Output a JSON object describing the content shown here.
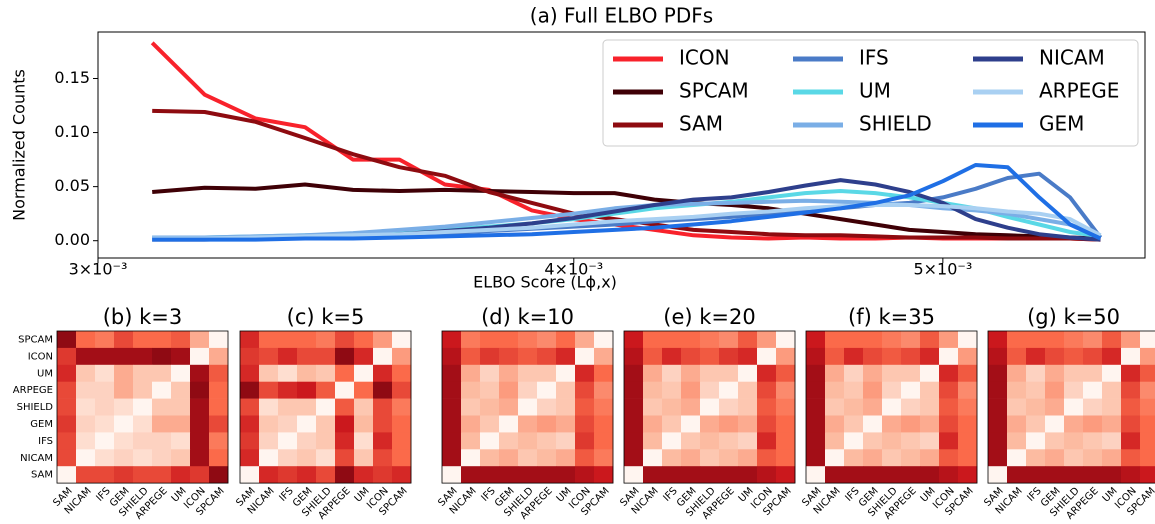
{
  "chart_data": [
    {
      "type": "line",
      "title": "(a) Full ELBO PDFs",
      "xlabel": "ELBO Score (Lϕ,x)",
      "ylabel": "Normalized Counts",
      "xscale": "log",
      "xlim": [
        0.003,
        0.00565
      ],
      "ylim": [
        -0.016,
        0.193
      ],
      "xticks": [
        {
          "value": 0.003,
          "label": "3×10⁻³"
        },
        {
          "value": 0.004,
          "label": "4×10⁻³"
        },
        {
          "value": 0.005,
          "label": "5×10⁻³"
        }
      ],
      "yticks": [
        {
          "value": 0,
          "label": "0.00"
        },
        {
          "value": 0.05,
          "label": "0.05"
        },
        {
          "value": 0.1,
          "label": "0.10"
        },
        {
          "value": 0.15,
          "label": "0.15"
        }
      ],
      "legend_position": "upper right",
      "legend_columns": 3,
      "x": [
        0.0031,
        0.0032,
        0.0033,
        0.0034,
        0.0035,
        0.0036,
        0.0037,
        0.0038,
        0.0039,
        0.004,
        0.0041,
        0.0042,
        0.0043,
        0.0044,
        0.0045,
        0.0046,
        0.0047,
        0.0048,
        0.0049,
        0.005,
        0.0051,
        0.0052,
        0.0053,
        0.0054,
        0.0055
      ],
      "series": [
        {
          "name": "ICON",
          "color": "#f8222b",
          "values": [
            0.183,
            0.135,
            0.113,
            0.105,
            0.075,
            0.075,
            0.052,
            0.047,
            0.028,
            0.02,
            0.015,
            0.01,
            0.005,
            0.003,
            0.002,
            0.003,
            0.002,
            0.002,
            0.003,
            0.002,
            0.002,
            0.002,
            0.002,
            0.002,
            0.001
          ]
        },
        {
          "name": "SPCAM",
          "color": "#3f0006",
          "values": [
            0.045,
            0.049,
            0.048,
            0.052,
            0.047,
            0.046,
            0.047,
            0.046,
            0.045,
            0.044,
            0.044,
            0.038,
            0.035,
            0.033,
            0.03,
            0.025,
            0.02,
            0.015,
            0.01,
            0.008,
            0.006,
            0.005,
            0.004,
            0.003,
            0.002
          ]
        },
        {
          "name": "SAM",
          "color": "#8e0b10",
          "values": [
            0.12,
            0.119,
            0.11,
            0.095,
            0.08,
            0.068,
            0.06,
            0.045,
            0.035,
            0.025,
            0.02,
            0.015,
            0.01,
            0.008,
            0.006,
            0.005,
            0.005,
            0.004,
            0.003,
            0.003,
            0.003,
            0.002,
            0.002,
            0.002,
            0.001
          ]
        },
        {
          "name": "IFS",
          "color": "#4a7bc7",
          "values": [
            0.002,
            0.002,
            0.003,
            0.003,
            0.004,
            0.005,
            0.007,
            0.009,
            0.011,
            0.013,
            0.015,
            0.018,
            0.02,
            0.022,
            0.025,
            0.028,
            0.03,
            0.033,
            0.035,
            0.04,
            0.048,
            0.058,
            0.062,
            0.04,
            0.003
          ]
        },
        {
          "name": "UM",
          "color": "#5ad8e6",
          "values": [
            0.003,
            0.003,
            0.004,
            0.005,
            0.006,
            0.008,
            0.01,
            0.013,
            0.016,
            0.02,
            0.025,
            0.03,
            0.033,
            0.036,
            0.04,
            0.044,
            0.046,
            0.044,
            0.04,
            0.035,
            0.03,
            0.022,
            0.015,
            0.008,
            0.004
          ]
        },
        {
          "name": "SHIELD",
          "color": "#7aaee6",
          "values": [
            0.003,
            0.003,
            0.004,
            0.005,
            0.007,
            0.01,
            0.013,
            0.017,
            0.021,
            0.025,
            0.03,
            0.033,
            0.034,
            0.035,
            0.036,
            0.037,
            0.036,
            0.035,
            0.033,
            0.03,
            0.028,
            0.025,
            0.02,
            0.015,
            0.005
          ]
        },
        {
          "name": "NICAM",
          "color": "#2e3f8c",
          "values": [
            0.001,
            0.001,
            0.002,
            0.003,
            0.004,
            0.006,
            0.009,
            0.012,
            0.016,
            0.021,
            0.027,
            0.033,
            0.038,
            0.04,
            0.045,
            0.051,
            0.056,
            0.052,
            0.045,
            0.035,
            0.02,
            0.012,
            0.006,
            0.003,
            0.001
          ]
        },
        {
          "name": "ARPEGE",
          "color": "#a9d0f2",
          "values": [
            0.002,
            0.002,
            0.003,
            0.004,
            0.005,
            0.006,
            0.008,
            0.01,
            0.012,
            0.015,
            0.018,
            0.02,
            0.022,
            0.025,
            0.027,
            0.03,
            0.032,
            0.033,
            0.033,
            0.032,
            0.03,
            0.027,
            0.025,
            0.02,
            0.005
          ]
        },
        {
          "name": "GEM",
          "color": "#1f6fe5",
          "values": [
            0.001,
            0.001,
            0.001,
            0.002,
            0.002,
            0.003,
            0.004,
            0.005,
            0.006,
            0.008,
            0.01,
            0.012,
            0.015,
            0.018,
            0.022,
            0.026,
            0.03,
            0.035,
            0.042,
            0.055,
            0.07,
            0.068,
            0.04,
            0.015,
            0.002
          ]
        }
      ]
    },
    {
      "type": "heatmap",
      "title": "(b) k=3",
      "colormap": "Reds",
      "zlim": [
        0,
        1
      ],
      "x_categories": [
        "SAM",
        "NICAM",
        "IFS",
        "GEM",
        "SHIELD",
        "ARPEGE",
        "UM",
        "ICON",
        "SPCAM"
      ],
      "y_categories": [
        "SPCAM",
        "ICON",
        "UM",
        "ARPEGE",
        "SHIELD",
        "GEM",
        "IFS",
        "NICAM",
        "SAM"
      ],
      "values": [
        [
          0.9,
          0.5,
          0.45,
          0.6,
          0.5,
          0.5,
          0.55,
          0.3,
          0
        ],
        [
          0.65,
          0.85,
          0.85,
          0.85,
          0.85,
          0.9,
          0.85,
          0,
          0.3
        ],
        [
          0.7,
          0.2,
          0.1,
          0.3,
          0.2,
          0.2,
          0,
          0.85,
          0.55
        ],
        [
          0.6,
          0.15,
          0.15,
          0.3,
          0.2,
          0,
          0.2,
          0.9,
          0.5
        ],
        [
          0.6,
          0.1,
          0.15,
          0.1,
          0,
          0.2,
          0.2,
          0.85,
          0.5
        ],
        [
          0.65,
          0.15,
          0.1,
          0,
          0.1,
          0.3,
          0.3,
          0.85,
          0.6
        ],
        [
          0.6,
          0.1,
          0,
          0.1,
          0.15,
          0.15,
          0.1,
          0.85,
          0.45
        ],
        [
          0.6,
          0,
          0.1,
          0.15,
          0.1,
          0.15,
          0.2,
          0.85,
          0.5
        ],
        [
          0,
          0.6,
          0.6,
          0.65,
          0.6,
          0.6,
          0.7,
          0.65,
          0.9
        ]
      ]
    },
    {
      "type": "heatmap",
      "title": "(c) k=5",
      "colormap": "Reds",
      "zlim": [
        0,
        1
      ],
      "x_categories": [
        "SAM",
        "NICAM",
        "IFS",
        "GEM",
        "SHIELD",
        "ARPEGE",
        "UM",
        "ICON",
        "SPCAM"
      ],
      "values": [
        [
          0.7,
          0.5,
          0.5,
          0.5,
          0.45,
          0.6,
          0.5,
          0.35,
          0
        ],
        [
          0.65,
          0.6,
          0.7,
          0.6,
          0.6,
          0.9,
          0.7,
          0,
          0.35
        ],
        [
          0.7,
          0.2,
          0.1,
          0.25,
          0.2,
          0.5,
          0,
          0.7,
          0.5
        ],
        [
          0.9,
          0.6,
          0.7,
          0.75,
          0.55,
          0,
          0.5,
          0.9,
          0.6
        ],
        [
          0.6,
          0.1,
          0.2,
          0.2,
          0,
          0.55,
          0.2,
          0.6,
          0.45
        ],
        [
          0.7,
          0.2,
          0.15,
          0,
          0.2,
          0.75,
          0.25,
          0.6,
          0.5
        ],
        [
          0.65,
          0.15,
          0,
          0.15,
          0.2,
          0.7,
          0.1,
          0.7,
          0.5
        ],
        [
          0.7,
          0,
          0.15,
          0.2,
          0.1,
          0.6,
          0.2,
          0.6,
          0.5
        ],
        [
          0,
          0.7,
          0.65,
          0.7,
          0.6,
          0.9,
          0.7,
          0.65,
          0.7
        ]
      ]
    },
    {
      "type": "heatmap",
      "title": "(d) k=10",
      "colormap": "Reds",
      "zlim": [
        0,
        1
      ],
      "x_categories": [
        "SAM",
        "NICAM",
        "IFS",
        "GEM",
        "SHIELD",
        "ARPEGE",
        "UM",
        "ICON",
        "SPCAM"
      ],
      "values": [
        [
          0.75,
          0.45,
          0.5,
          0.5,
          0.45,
          0.4,
          0.5,
          0.3,
          0
        ],
        [
          0.8,
          0.55,
          0.65,
          0.6,
          0.55,
          0.6,
          0.7,
          0,
          0.3
        ],
        [
          0.85,
          0.3,
          0.15,
          0.3,
          0.2,
          0.2,
          0,
          0.7,
          0.5
        ],
        [
          0.85,
          0.25,
          0.2,
          0.35,
          0.15,
          0,
          0.2,
          0.6,
          0.4
        ],
        [
          0.85,
          0.2,
          0.25,
          0.3,
          0,
          0.15,
          0.2,
          0.55,
          0.45
        ],
        [
          0.85,
          0.3,
          0.2,
          0,
          0.3,
          0.35,
          0.3,
          0.6,
          0.5
        ],
        [
          0.85,
          0.25,
          0,
          0.2,
          0.25,
          0.2,
          0.15,
          0.65,
          0.5
        ],
        [
          0.85,
          0,
          0.25,
          0.3,
          0.2,
          0.25,
          0.3,
          0.55,
          0.45
        ],
        [
          0,
          0.85,
          0.85,
          0.85,
          0.85,
          0.85,
          0.85,
          0.8,
          0.75
        ]
      ]
    },
    {
      "type": "heatmap",
      "title": "(e) k=20",
      "colormap": "Reds",
      "zlim": [
        0,
        1
      ],
      "x_categories": [
        "SAM",
        "NICAM",
        "IFS",
        "GEM",
        "SHIELD",
        "ARPEGE",
        "UM",
        "ICON",
        "SPCAM"
      ],
      "values": [
        [
          0.75,
          0.5,
          0.5,
          0.5,
          0.45,
          0.4,
          0.55,
          0.35,
          0
        ],
        [
          0.8,
          0.55,
          0.7,
          0.6,
          0.55,
          0.65,
          0.7,
          0,
          0.35
        ],
        [
          0.85,
          0.3,
          0.15,
          0.3,
          0.2,
          0.2,
          0,
          0.7,
          0.55
        ],
        [
          0.85,
          0.25,
          0.2,
          0.35,
          0.15,
          0,
          0.2,
          0.6,
          0.4
        ],
        [
          0.85,
          0.2,
          0.25,
          0.3,
          0,
          0.15,
          0.2,
          0.55,
          0.45
        ],
        [
          0.85,
          0.3,
          0.2,
          0,
          0.3,
          0.35,
          0.3,
          0.6,
          0.5
        ],
        [
          0.85,
          0.25,
          0,
          0.2,
          0.25,
          0.2,
          0.15,
          0.7,
          0.5
        ],
        [
          0.85,
          0,
          0.25,
          0.3,
          0.2,
          0.25,
          0.3,
          0.55,
          0.5
        ],
        [
          0,
          0.85,
          0.85,
          0.85,
          0.85,
          0.85,
          0.85,
          0.8,
          0.75
        ]
      ]
    },
    {
      "type": "heatmap",
      "title": "(f) k=35",
      "colormap": "Reds",
      "zlim": [
        0,
        1
      ],
      "x_categories": [
        "SAM",
        "NICAM",
        "IFS",
        "GEM",
        "SHIELD",
        "ARPEGE",
        "UM",
        "ICON",
        "SPCAM"
      ],
      "values": [
        [
          0.75,
          0.5,
          0.5,
          0.5,
          0.45,
          0.4,
          0.55,
          0.35,
          0
        ],
        [
          0.8,
          0.55,
          0.7,
          0.6,
          0.55,
          0.6,
          0.7,
          0,
          0.35
        ],
        [
          0.85,
          0.3,
          0.15,
          0.3,
          0.2,
          0.2,
          0,
          0.7,
          0.55
        ],
        [
          0.85,
          0.25,
          0.2,
          0.35,
          0.15,
          0,
          0.2,
          0.6,
          0.4
        ],
        [
          0.85,
          0.2,
          0.25,
          0.3,
          0,
          0.15,
          0.2,
          0.55,
          0.45
        ],
        [
          0.85,
          0.3,
          0.2,
          0,
          0.3,
          0.35,
          0.3,
          0.6,
          0.5
        ],
        [
          0.85,
          0.25,
          0,
          0.2,
          0.25,
          0.2,
          0.15,
          0.7,
          0.5
        ],
        [
          0.85,
          0,
          0.25,
          0.3,
          0.2,
          0.25,
          0.3,
          0.55,
          0.5
        ],
        [
          0,
          0.85,
          0.85,
          0.85,
          0.85,
          0.85,
          0.85,
          0.8,
          0.75
        ]
      ]
    },
    {
      "type": "heatmap",
      "title": "(g) k=50",
      "colormap": "Reds",
      "zlim": [
        0,
        1
      ],
      "x_categories": [
        "SAM",
        "NICAM",
        "IFS",
        "GEM",
        "SHIELD",
        "ARPEGE",
        "UM",
        "ICON",
        "SPCAM"
      ],
      "values": [
        [
          0.75,
          0.5,
          0.5,
          0.5,
          0.45,
          0.4,
          0.55,
          0.35,
          0
        ],
        [
          0.8,
          0.55,
          0.7,
          0.6,
          0.55,
          0.6,
          0.7,
          0,
          0.35
        ],
        [
          0.85,
          0.3,
          0.15,
          0.3,
          0.2,
          0.2,
          0,
          0.7,
          0.55
        ],
        [
          0.85,
          0.25,
          0.2,
          0.35,
          0.15,
          0,
          0.2,
          0.6,
          0.4
        ],
        [
          0.85,
          0.2,
          0.25,
          0.3,
          0,
          0.15,
          0.2,
          0.55,
          0.45
        ],
        [
          0.85,
          0.3,
          0.2,
          0,
          0.3,
          0.35,
          0.3,
          0.6,
          0.5
        ],
        [
          0.85,
          0.25,
          0,
          0.2,
          0.25,
          0.2,
          0.15,
          0.7,
          0.5
        ],
        [
          0.85,
          0,
          0.25,
          0.3,
          0.2,
          0.25,
          0.3,
          0.55,
          0.5
        ],
        [
          0,
          0.85,
          0.85,
          0.85,
          0.85,
          0.85,
          0.85,
          0.8,
          0.75
        ]
      ]
    }
  ]
}
